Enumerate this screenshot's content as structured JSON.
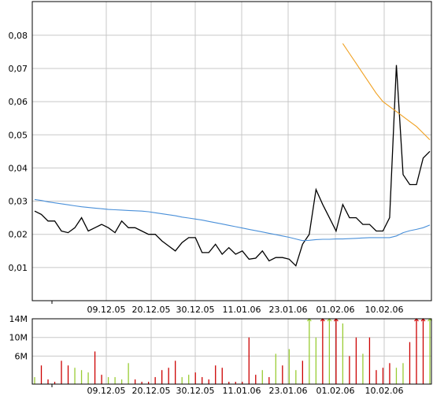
{
  "chart_data": [
    {
      "type": "line",
      "title": "",
      "xlabel": "",
      "ylabel": "",
      "ylim": [
        0,
        0.095
      ],
      "y_ticks": [
        {
          "value": 0.01,
          "label": "0,01"
        },
        {
          "value": 0.02,
          "label": "0,02"
        },
        {
          "value": 0.03,
          "label": "0,03"
        },
        {
          "value": 0.04,
          "label": "0,04"
        },
        {
          "value": 0.05,
          "label": "0,05"
        },
        {
          "value": 0.06,
          "label": "0,06"
        },
        {
          "value": 0.07,
          "label": "0,07"
        },
        {
          "value": 0.08,
          "label": "0,08"
        }
      ],
      "x_ticks": [
        "09.12.05",
        "20.12.05",
        "30.12.05",
        "11.01.06",
        "23.01.06",
        "01.02.06",
        "10.02.06"
      ],
      "grid": true,
      "series": [
        {
          "color": "#000000",
          "values": [
            0.027,
            0.026,
            0.024,
            0.024,
            0.021,
            0.0205,
            0.022,
            0.025,
            0.021,
            0.022,
            0.023,
            0.022,
            0.0205,
            0.024,
            0.022,
            0.022,
            0.021,
            0.02,
            0.02,
            0.018,
            0.0165,
            0.015,
            0.0175,
            0.019,
            0.019,
            0.0145,
            0.0145,
            0.017,
            0.014,
            0.016,
            0.014,
            0.015,
            0.0125,
            0.0128,
            0.015,
            0.012,
            0.013,
            0.013,
            0.0125,
            0.0105,
            0.017,
            0.02,
            0.0335,
            0.029,
            0.025,
            0.021,
            0.029,
            0.025,
            0.025,
            0.023,
            0.023,
            0.021,
            0.021,
            0.025,
            0.071,
            0.038,
            0.035,
            0.035,
            0.043,
            0.045
          ]
        },
        {
          "color": "#4a90d9",
          "values": [
            0.0305,
            0.0302,
            0.0298,
            0.0295,
            0.0292,
            0.0289,
            0.0286,
            0.0283,
            0.0281,
            0.0279,
            0.0277,
            0.0275,
            0.0274,
            0.0273,
            0.0272,
            0.0271,
            0.027,
            0.0268,
            0.0265,
            0.0262,
            0.0259,
            0.0256,
            0.0252,
            0.0249,
            0.0246,
            0.0243,
            0.0239,
            0.0235,
            0.0231,
            0.0227,
            0.0223,
            0.0219,
            0.0215,
            0.0211,
            0.0207,
            0.0203,
            0.0199,
            0.0195,
            0.0191,
            0.0186,
            0.0181,
            0.0182,
            0.0184,
            0.0185,
            0.0185,
            0.0186,
            0.0186,
            0.0187,
            0.0188,
            0.0189,
            0.019,
            0.019,
            0.019,
            0.019,
            0.0195,
            0.0205,
            0.0211,
            0.0215,
            0.022,
            0.0228
          ]
        },
        {
          "color": "#f0a020",
          "values": [
            null,
            null,
            null,
            null,
            null,
            null,
            null,
            null,
            null,
            null,
            null,
            null,
            null,
            null,
            null,
            null,
            null,
            null,
            null,
            null,
            null,
            null,
            null,
            null,
            null,
            null,
            null,
            null,
            null,
            null,
            null,
            null,
            null,
            null,
            null,
            null,
            null,
            null,
            null,
            null,
            null,
            null,
            null,
            null,
            null,
            null,
            0.0775,
            0.0745,
            0.0715,
            0.0685,
            0.0655,
            0.0625,
            0.06,
            0.0585,
            0.057,
            0.0555,
            0.054,
            0.0525,
            0.0505,
            0.0485
          ]
        }
      ]
    },
    {
      "type": "bar",
      "title": "",
      "xlabel": "",
      "ylabel": "",
      "ylim": [
        0,
        14
      ],
      "y_ticks": [
        {
          "value": 6,
          "label": "6M"
        },
        {
          "value": 10,
          "label": "10M"
        },
        {
          "value": 14,
          "label": "14M"
        }
      ],
      "x_ticks": [
        "09.12.05",
        "20.12.05",
        "30.12.05",
        "11.01.06",
        "23.01.06",
        "01.02.06",
        "10.02.06"
      ],
      "grid": true,
      "values": [
        1.5,
        4,
        1,
        0.5,
        5,
        4,
        3.5,
        3,
        2.5,
        7,
        2,
        1.5,
        1.5,
        1,
        4.5,
        1,
        0.5,
        0.5,
        1.5,
        3,
        3.5,
        5,
        1.5,
        2,
        2.5,
        1.5,
        1,
        4,
        3.5,
        0.5,
        0.5,
        0.5,
        10,
        2,
        3,
        1.5,
        6.5,
        4,
        7.5,
        3,
        5,
        14,
        10,
        14,
        14,
        14,
        13,
        6,
        10,
        6.5,
        10,
        3,
        3.5,
        4.5,
        3.5,
        4.5,
        9,
        14,
        14,
        14
      ],
      "colors": [
        "#99cc33",
        "#cc0000",
        "#cc0000",
        "#cc0000",
        "#cc0000",
        "#cc0000",
        "#99cc33",
        "#99cc33",
        "#99cc33",
        "#cc0000",
        "#cc0000",
        "#99cc33",
        "#99cc33",
        "#99cc33",
        "#99cc33",
        "#cc0000",
        "#cc0000",
        "#cc0000",
        "#cc0000",
        "#cc0000",
        "#cc0000",
        "#cc0000",
        "#99cc33",
        "#99cc33",
        "#cc0000",
        "#cc0000",
        "#cc0000",
        "#cc0000",
        "#cc0000",
        "#cc0000",
        "#cc0000",
        "#cc0000",
        "#cc0000",
        "#cc0000",
        "#99cc33",
        "#cc0000",
        "#99cc33",
        "#cc0000",
        "#99cc33",
        "#99cc33",
        "#cc0000",
        "#99cc33",
        "#99cc33",
        "#cc0000",
        "#99cc33",
        "#cc0000",
        "#99cc33",
        "#cc0000",
        "#cc0000",
        "#99cc33",
        "#cc0000",
        "#cc0000",
        "#cc0000",
        "#cc0000",
        "#99cc33",
        "#99cc33",
        "#cc0000",
        "#cc0000",
        "#cc0000",
        "#99cc33"
      ],
      "clipped": [
        false,
        false,
        false,
        false,
        false,
        false,
        false,
        false,
        false,
        false,
        false,
        false,
        false,
        false,
        false,
        false,
        false,
        false,
        false,
        false,
        false,
        false,
        false,
        false,
        false,
        false,
        false,
        false,
        false,
        false,
        false,
        false,
        false,
        false,
        false,
        false,
        false,
        false,
        false,
        false,
        false,
        true,
        false,
        true,
        true,
        true,
        false,
        false,
        false,
        false,
        false,
        false,
        false,
        false,
        false,
        false,
        false,
        true,
        true,
        true
      ]
    }
  ]
}
